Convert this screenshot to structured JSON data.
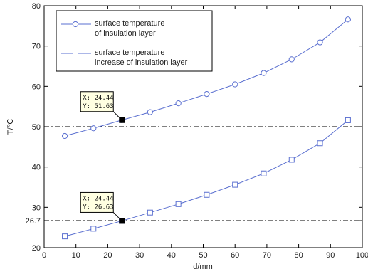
{
  "chart_data": {
    "type": "line",
    "xlabel": "d/mm",
    "ylabel": "T/℃",
    "xlim": [
      0,
      100
    ],
    "ylim": [
      20,
      80
    ],
    "x_ticks": [
      "0",
      "10",
      "20",
      "30",
      "40",
      "50",
      "60",
      "70",
      "80",
      "90",
      "100"
    ],
    "y_ticks": [
      "20",
      "26.7",
      "30",
      "40",
      "50",
      "60",
      "70",
      "80"
    ],
    "grid": false,
    "legend_position": "top-left",
    "colors": {
      "series": "#5a6fd0",
      "reference": "#000000",
      "datatip_bg": "#ffffe1"
    },
    "series": [
      {
        "name": "surface temperature of insulation layer",
        "legend_lines": [
          "surface temperature",
          "of insulation layer"
        ],
        "marker": "circle",
        "x": [
          6.5,
          15.5,
          24.4,
          33.3,
          42.2,
          51.1,
          60,
          69,
          77.8,
          86.7,
          95.5
        ],
        "y": [
          47.7,
          49.6,
          51.63,
          53.6,
          55.8,
          58.1,
          60.5,
          63.3,
          66.7,
          70.9,
          76.6
        ]
      },
      {
        "name": "surface temperature increase of insulation layer",
        "legend_lines": [
          "surface temperature",
          "increase of insulation layer"
        ],
        "marker": "square",
        "x": [
          6.5,
          15.5,
          24.4,
          33.3,
          42.2,
          51.1,
          60,
          69,
          77.8,
          86.7,
          95.5
        ],
        "y": [
          22.8,
          24.7,
          26.63,
          28.7,
          30.8,
          33.1,
          35.6,
          38.4,
          41.8,
          45.9,
          51.6
        ]
      }
    ],
    "reference_lines": [
      {
        "y": 50
      },
      {
        "y": 26.7
      }
    ],
    "datatips": [
      {
        "x": 24.44,
        "y": 51.63,
        "xtext": "X: 24.44",
        "ytext": "Y: 51.63"
      },
      {
        "x": 24.44,
        "y": 26.63,
        "xtext": "X: 24.44",
        "ytext": "Y: 26.63"
      }
    ]
  }
}
